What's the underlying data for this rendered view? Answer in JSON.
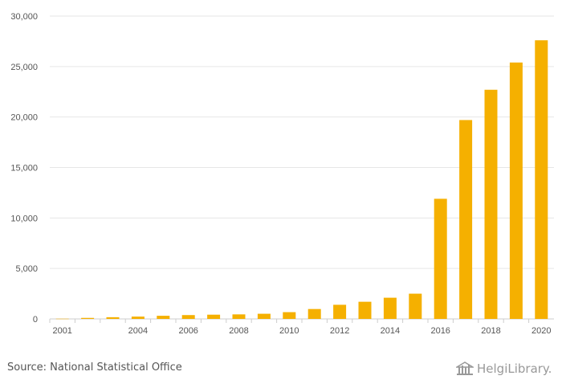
{
  "chart_data": {
    "type": "bar",
    "title": "",
    "xlabel": "",
    "ylabel": "",
    "categories": [
      "2001",
      "2002",
      "2003",
      "2004",
      "2005",
      "2006",
      "2007",
      "2008",
      "2009",
      "2010",
      "2011",
      "2012",
      "2013",
      "2014",
      "2015",
      "2016",
      "2017",
      "2018",
      "2019",
      "2020"
    ],
    "values": [
      20,
      100,
      170,
      230,
      310,
      380,
      420,
      450,
      510,
      670,
      980,
      1400,
      1700,
      2100,
      2500,
      11900,
      19700,
      22700,
      25400,
      27600
    ],
    "x_tick_labels": [
      "2001",
      "2004",
      "2006",
      "2008",
      "2010",
      "2012",
      "2014",
      "2016",
      "2018",
      "2020"
    ],
    "ylim": [
      0,
      30000
    ],
    "y_ticks": [
      0,
      5000,
      10000,
      15000,
      20000,
      25000,
      30000
    ],
    "y_tick_labels": [
      "0",
      "5,000",
      "10,000",
      "15,000",
      "20,000",
      "25,000",
      "30,000"
    ],
    "bar_color": "#f5b000",
    "grid": true,
    "legend": "none"
  },
  "footer": {
    "source": "Source: National Statistical Office",
    "brand": "HelgiLibrary."
  }
}
